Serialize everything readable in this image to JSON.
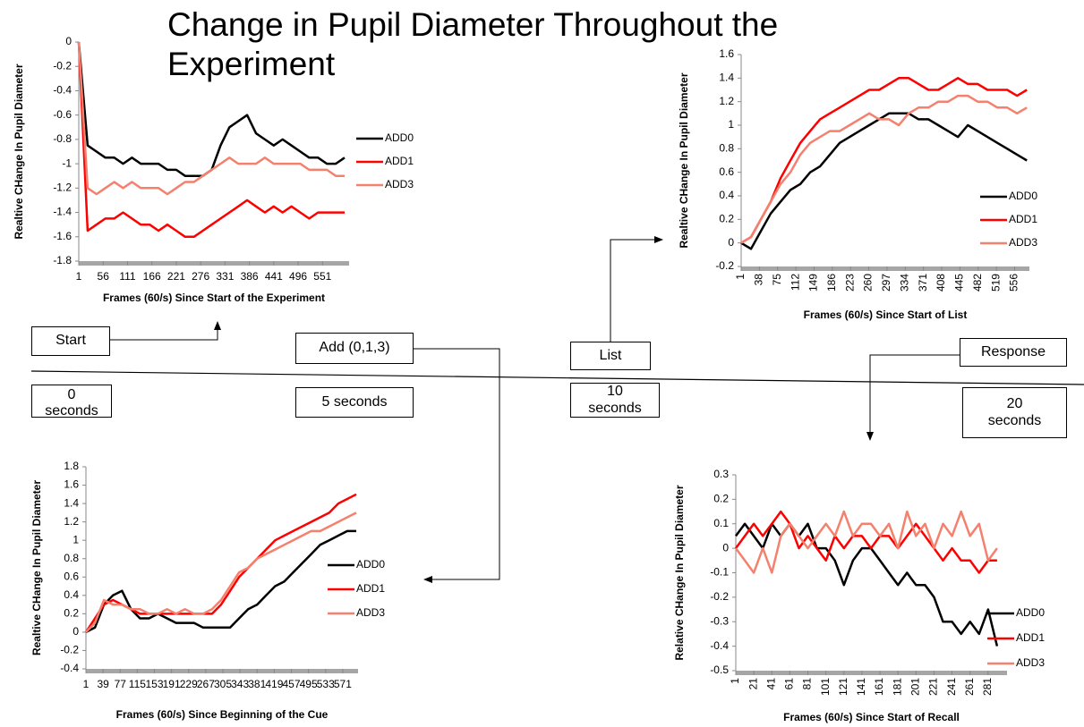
{
  "title": "Change in Pupil Diameter Throughout the Experiment",
  "timeline": {
    "events": [
      "Start",
      "Add (0,1,3)",
      "List",
      "Response"
    ],
    "times": [
      "0 seconds",
      "5 seconds",
      "10 seconds",
      "20 seconds"
    ]
  },
  "chart_data": [
    {
      "type": "line",
      "xlabel": "Frames (60/s) Since Start of the Experiment",
      "ylabel": "Realtive CHange In Pupil Diameter",
      "x": [
        1,
        21,
        41,
        61,
        81,
        101,
        121,
        141,
        161,
        181,
        201,
        221,
        241,
        261,
        281,
        301,
        321,
        341,
        361,
        381,
        401,
        421,
        441,
        461,
        481,
        501,
        521,
        541,
        561,
        581,
        601
      ],
      "xlim": [
        1,
        611
      ],
      "xticks": [
        1,
        56,
        111,
        166,
        221,
        276,
        331,
        386,
        441,
        496,
        551
      ],
      "ylim": [
        -1.8,
        0
      ],
      "yticks": [
        -1.8,
        -1.6,
        -1.4,
        -1.2,
        -1,
        -0.8,
        -0.6,
        -0.4,
        -0.2,
        0
      ],
      "series": [
        {
          "name": "ADD0",
          "color": "#000000",
          "values": [
            0,
            -0.85,
            -0.9,
            -0.95,
            -0.95,
            -1.0,
            -0.95,
            -1.0,
            -1.0,
            -1.0,
            -1.05,
            -1.05,
            -1.1,
            -1.1,
            -1.1,
            -1.05,
            -0.85,
            -0.7,
            -0.65,
            -0.6,
            -0.75,
            -0.8,
            -0.85,
            -0.8,
            -0.85,
            -0.9,
            -0.95,
            -0.95,
            -1.0,
            -1.0,
            -0.95
          ]
        },
        {
          "name": "ADD1",
          "color": "#ff0000",
          "values": [
            0,
            -1.55,
            -1.5,
            -1.45,
            -1.45,
            -1.4,
            -1.45,
            -1.5,
            -1.5,
            -1.55,
            -1.5,
            -1.55,
            -1.6,
            -1.6,
            -1.55,
            -1.5,
            -1.45,
            -1.4,
            -1.35,
            -1.3,
            -1.35,
            -1.4,
            -1.35,
            -1.4,
            -1.35,
            -1.4,
            -1.45,
            -1.4,
            -1.4,
            -1.4,
            -1.4
          ]
        },
        {
          "name": "ADD3",
          "color": "#f4806e",
          "values": [
            0,
            -1.2,
            -1.25,
            -1.2,
            -1.15,
            -1.2,
            -1.15,
            -1.2,
            -1.2,
            -1.2,
            -1.25,
            -1.2,
            -1.15,
            -1.15,
            -1.1,
            -1.05,
            -1.0,
            -0.95,
            -1.0,
            -1.0,
            -1.0,
            -0.95,
            -1.0,
            -1.0,
            -1.0,
            -1.0,
            -1.05,
            -1.05,
            -1.05,
            -1.1,
            -1.1
          ]
        }
      ]
    },
    {
      "type": "line",
      "xlabel": "Frames (60/s) Since Start of List",
      "ylabel": "Realtive CHange In Pupil Diameter",
      "x": [
        1,
        21,
        41,
        61,
        81,
        101,
        121,
        141,
        161,
        181,
        201,
        221,
        241,
        261,
        281,
        301,
        321,
        341,
        361,
        381,
        401,
        421,
        441,
        461,
        481,
        501,
        521,
        541,
        561,
        581
      ],
      "xlim": [
        1,
        586
      ],
      "xticks": [
        1,
        38,
        75,
        112,
        149,
        186,
        223,
        260,
        297,
        334,
        371,
        408,
        445,
        482,
        519,
        556
      ],
      "ylim": [
        -0.2,
        1.6
      ],
      "yticks": [
        -0.2,
        0,
        0.2,
        0.4,
        0.6,
        0.8,
        1,
        1.2,
        1.4,
        1.6
      ],
      "series": [
        {
          "name": "ADD0",
          "color": "#000000",
          "values": [
            0,
            -0.05,
            0.1,
            0.25,
            0.35,
            0.45,
            0.5,
            0.6,
            0.65,
            0.75,
            0.85,
            0.9,
            0.95,
            1.0,
            1.05,
            1.1,
            1.1,
            1.1,
            1.05,
            1.05,
            1.0,
            0.95,
            0.9,
            1.0,
            0.95,
            0.9,
            0.85,
            0.8,
            0.75,
            0.7
          ]
        },
        {
          "name": "ADD1",
          "color": "#ff0000",
          "values": [
            0,
            0.05,
            0.2,
            0.35,
            0.55,
            0.7,
            0.85,
            0.95,
            1.05,
            1.1,
            1.15,
            1.2,
            1.25,
            1.3,
            1.3,
            1.35,
            1.4,
            1.4,
            1.35,
            1.3,
            1.3,
            1.35,
            1.4,
            1.35,
            1.35,
            1.3,
            1.3,
            1.3,
            1.25,
            1.3
          ]
        },
        {
          "name": "ADD3",
          "color": "#f4806e",
          "values": [
            0,
            0.05,
            0.2,
            0.35,
            0.5,
            0.6,
            0.75,
            0.85,
            0.9,
            0.95,
            0.95,
            1.0,
            1.05,
            1.1,
            1.05,
            1.05,
            1.0,
            1.1,
            1.15,
            1.15,
            1.2,
            1.2,
            1.25,
            1.25,
            1.2,
            1.2,
            1.15,
            1.15,
            1.1,
            1.15
          ]
        }
      ]
    },
    {
      "type": "line",
      "xlabel": "Frames (60/s)  Since Beginning of the Cue",
      "ylabel": "Realtive CHange In Pupil Diameter",
      "x": [
        1,
        21,
        41,
        61,
        81,
        101,
        121,
        141,
        161,
        181,
        201,
        221,
        241,
        261,
        281,
        301,
        321,
        341,
        361,
        381,
        401,
        421,
        441,
        461,
        481,
        501,
        521,
        541,
        561,
        581,
        601
      ],
      "xlim": [
        1,
        605
      ],
      "xticks": [
        1,
        39,
        77,
        115,
        153,
        191,
        229,
        267,
        305,
        343,
        381,
        419,
        457,
        495,
        533,
        571
      ],
      "ylim": [
        -0.4,
        1.8
      ],
      "yticks": [
        -0.4,
        -0.2,
        0,
        0.2,
        0.4,
        0.6,
        0.8,
        1,
        1.2,
        1.4,
        1.6,
        1.8
      ],
      "series": [
        {
          "name": "ADD0",
          "color": "#000000",
          "values": [
            0,
            0.05,
            0.3,
            0.4,
            0.45,
            0.25,
            0.15,
            0.15,
            0.2,
            0.15,
            0.1,
            0.1,
            0.1,
            0.05,
            0.05,
            0.05,
            0.05,
            0.15,
            0.25,
            0.3,
            0.4,
            0.5,
            0.55,
            0.65,
            0.75,
            0.85,
            0.95,
            1.0,
            1.05,
            1.1,
            1.1
          ]
        },
        {
          "name": "ADD1",
          "color": "#ff0000",
          "values": [
            0,
            0.15,
            0.3,
            0.35,
            0.3,
            0.25,
            0.2,
            0.2,
            0.2,
            0.2,
            0.2,
            0.2,
            0.2,
            0.2,
            0.2,
            0.3,
            0.45,
            0.6,
            0.7,
            0.8,
            0.9,
            1.0,
            1.05,
            1.1,
            1.15,
            1.2,
            1.25,
            1.3,
            1.4,
            1.45,
            1.5
          ]
        },
        {
          "name": "ADD3",
          "color": "#f4806e",
          "values": [
            0,
            0.1,
            0.35,
            0.3,
            0.3,
            0.25,
            0.25,
            0.2,
            0.2,
            0.25,
            0.2,
            0.25,
            0.2,
            0.2,
            0.25,
            0.35,
            0.5,
            0.65,
            0.7,
            0.8,
            0.85,
            0.9,
            0.95,
            1.0,
            1.05,
            1.1,
            1.1,
            1.15,
            1.2,
            1.25,
            1.3
          ]
        }
      ]
    },
    {
      "type": "line",
      "xlabel": "Frames (60/s) Since Start of Recall",
      "ylabel": "Relative CHange In Pupil Diameter",
      "x": [
        1,
        11,
        21,
        31,
        41,
        51,
        61,
        71,
        81,
        91,
        101,
        111,
        121,
        131,
        141,
        151,
        161,
        171,
        181,
        191,
        201,
        211,
        221,
        231,
        241,
        251,
        261,
        271,
        281,
        291
      ],
      "xlim": [
        1,
        302
      ],
      "xticks": [
        1,
        21,
        41,
        61,
        81,
        101,
        121,
        141,
        161,
        181,
        201,
        221,
        241,
        261,
        281
      ],
      "ylim": [
        -0.5,
        0.3
      ],
      "yticks": [
        -0.5,
        -0.4,
        -0.3,
        -0.2,
        -0.1,
        0,
        0.1,
        0.2,
        0.3
      ],
      "series": [
        {
          "name": "ADD0",
          "color": "#000000",
          "values": [
            0.05,
            0.1,
            0.05,
            0.0,
            0.1,
            0.05,
            0.1,
            0.05,
            0.1,
            0.0,
            0.0,
            -0.05,
            -0.15,
            -0.05,
            0.0,
            0.0,
            -0.05,
            -0.1,
            -0.15,
            -0.1,
            -0.15,
            -0.15,
            -0.2,
            -0.3,
            -0.3,
            -0.35,
            -0.3,
            -0.35,
            -0.25,
            -0.4
          ]
        },
        {
          "name": "ADD1",
          "color": "#ff0000",
          "values": [
            0.0,
            0.05,
            0.1,
            0.05,
            0.1,
            0.15,
            0.1,
            0.0,
            0.05,
            0.0,
            -0.05,
            0.05,
            0.0,
            0.05,
            0.05,
            0.0,
            0.05,
            0.05,
            0.0,
            0.05,
            0.1,
            0.05,
            0.0,
            -0.05,
            0.0,
            -0.05,
            -0.05,
            -0.1,
            -0.05,
            -0.05
          ]
        },
        {
          "name": "ADD3",
          "color": "#f4806e",
          "values": [
            0.0,
            -0.05,
            -0.1,
            0.0,
            -0.1,
            0.05,
            0.1,
            0.05,
            0.0,
            0.05,
            0.1,
            0.05,
            0.15,
            0.05,
            0.1,
            0.1,
            0.05,
            0.1,
            0.0,
            0.15,
            0.05,
            0.1,
            0.0,
            0.1,
            0.05,
            0.15,
            0.05,
            0.1,
            -0.05,
            0.0
          ]
        }
      ]
    }
  ]
}
